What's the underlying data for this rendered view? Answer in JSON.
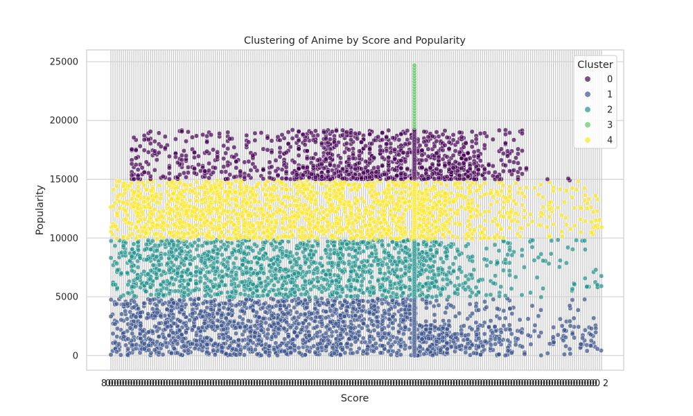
{
  "chart_data": {
    "type": "scatter",
    "title": "Clustering of Anime by Score and Popularity",
    "xlabel": "Score",
    "ylabel": "Popularity",
    "ylim": [
      -1250,
      26000
    ],
    "yticks": [
      0,
      5000,
      10000,
      15000,
      20000,
      25000
    ],
    "x_axis": "categorical, ~200+ densely overlapping score tick labels (illegible)",
    "x_tick_visible_start": "8",
    "x_tick_visible_end": "2",
    "grid": true,
    "legend": {
      "title": "Cluster",
      "placement": "top-right",
      "entries": [
        {
          "label": "0",
          "color": "#440154"
        },
        {
          "label": "1",
          "color": "#3b528b"
        },
        {
          "label": "2",
          "color": "#21918c"
        },
        {
          "label": "3",
          "color": "#5ec962"
        },
        {
          "label": "4",
          "color": "#fde725"
        }
      ]
    },
    "series": [
      {
        "name": "0",
        "color": "#440154",
        "popularity_range": [
          15000,
          19300
        ],
        "description": "high popularity cluster"
      },
      {
        "name": "1",
        "color": "#3b528b",
        "popularity_range": [
          0,
          4900
        ]
      },
      {
        "name": "2",
        "color": "#21918c",
        "popularity_range": [
          4900,
          9900
        ]
      },
      {
        "name": "3",
        "color": "#5ec962",
        "popularity_range": [
          19400,
          24800
        ],
        "description": "single score column outlier cluster"
      },
      {
        "name": "4",
        "color": "#fde725",
        "popularity_range": [
          9900,
          15000
        ]
      }
    ]
  }
}
